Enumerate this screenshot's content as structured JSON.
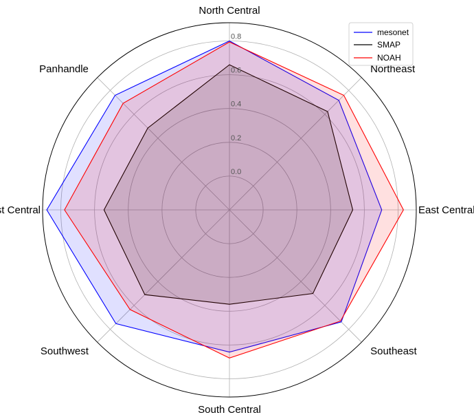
{
  "chart_data": {
    "type": "radar",
    "title": "",
    "categories": [
      "North Central",
      "Northeast",
      "East Central",
      "Southeast",
      "South Central",
      "Southwest",
      "West Central",
      "Panhandle"
    ],
    "rticks": [
      "0.0",
      "0.2",
      "0.4",
      "0.6",
      "0.8"
    ],
    "rtick_values": [
      0.0,
      0.2,
      0.4,
      0.6,
      0.8
    ],
    "rlim": [
      -0.2,
      0.908
    ],
    "grid": true,
    "legend_position": "top-right",
    "series": [
      {
        "name": "mesonet",
        "color": "#0000ff",
        "values": [
          0.8,
          0.717,
          0.703,
          0.738,
          0.642,
          0.752,
          0.883,
          0.759
        ]
      },
      {
        "name": "SMAP",
        "color": "#000000",
        "values": [
          0.659,
          0.623,
          0.531,
          0.5,
          0.359,
          0.51,
          0.544,
          0.485
        ]
      },
      {
        "name": "NOAH",
        "color": "#ff0000",
        "values": [
          0.794,
          0.759,
          0.832,
          0.731,
          0.677,
          0.634,
          0.778,
          0.692
        ]
      }
    ]
  }
}
